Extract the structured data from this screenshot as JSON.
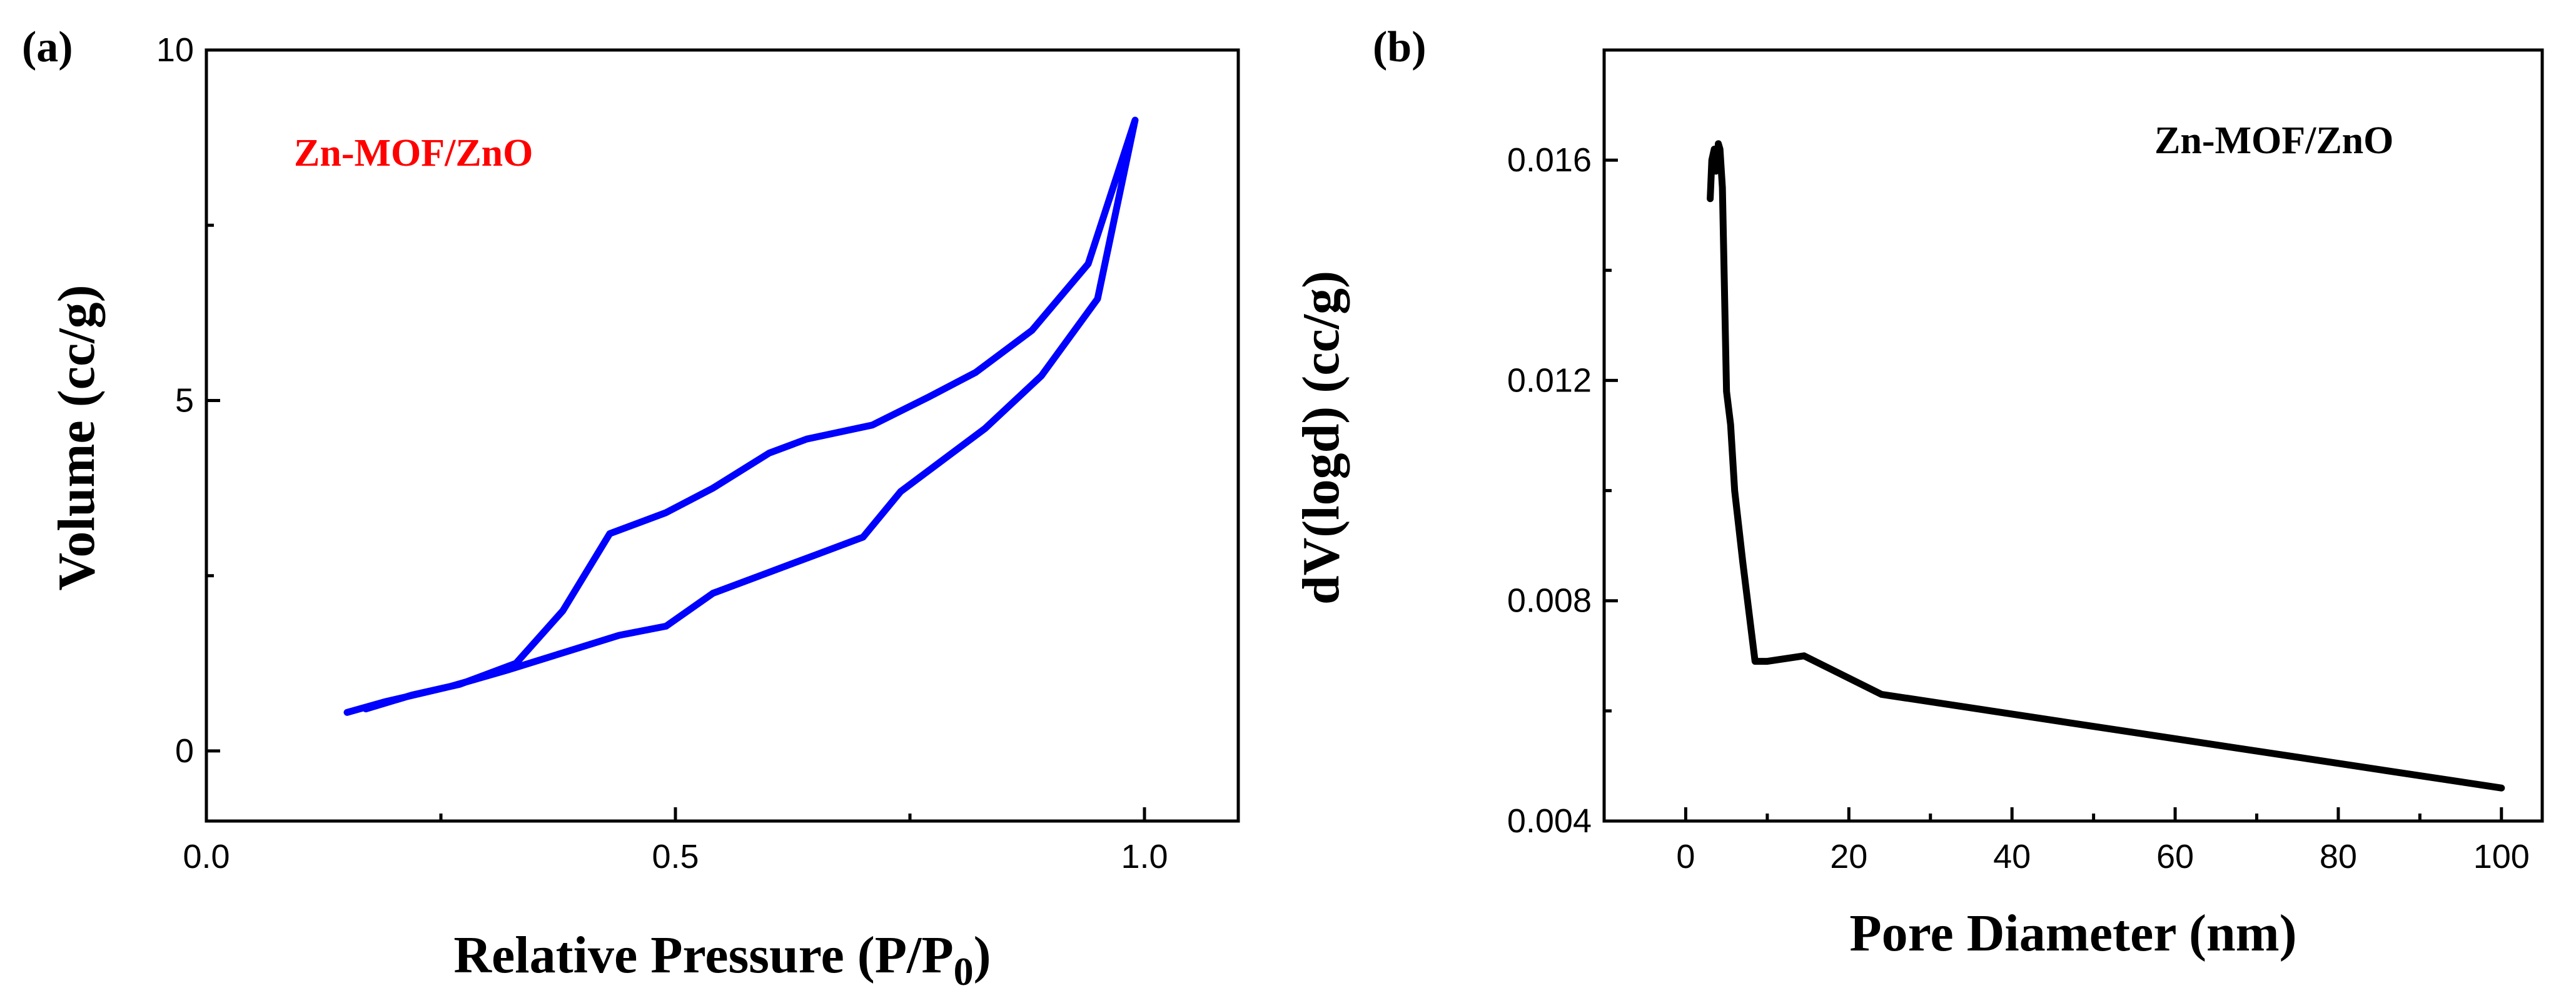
{
  "chart_data": [
    {
      "type": "line",
      "panel_label": "(a)",
      "xlabel": "Relative Pressure (P/P",
      "xlabel_subscript": "0",
      "xlabel_suffix": ")",
      "ylabel": "Volume (cc/g)",
      "xlim": [
        0.0,
        1.1
      ],
      "ylim": [
        -1,
        10
      ],
      "xticks": [
        0.0,
        0.5,
        1.0
      ],
      "xtick_labels": [
        "0.0",
        "0.5",
        "1.0"
      ],
      "yticks": [
        0,
        5,
        10
      ],
      "ytick_labels": [
        "0",
        "5",
        "10"
      ],
      "grid": false,
      "annotation": "Zn-MOF/ZnO",
      "annotation_color": "#ff0000",
      "series": [
        {
          "name": "Zn-MOF/ZnO",
          "color": "#0000ff",
          "x": [
            0.15,
            0.19,
            0.26,
            0.32,
            0.38,
            0.44,
            0.49,
            0.54,
            0.6,
            0.65,
            0.7,
            0.74,
            0.78,
            0.83,
            0.89,
            0.95,
            0.99,
            0.94,
            0.88,
            0.82,
            0.77,
            0.71,
            0.64,
            0.6,
            0.54,
            0.49,
            0.43,
            0.38,
            0.33,
            0.27,
            0.22,
            0.17
          ],
          "y": [
            0.55,
            0.7,
            0.92,
            1.15,
            1.4,
            1.65,
            1.78,
            2.25,
            2.55,
            2.8,
            3.05,
            3.7,
            4.1,
            4.6,
            5.35,
            6.45,
            9.0,
            6.95,
            6.0,
            5.4,
            5.05,
            4.65,
            4.45,
            4.25,
            3.75,
            3.4,
            3.1,
            2.0,
            1.25,
            0.95,
            0.8,
            0.6
          ]
        }
      ]
    },
    {
      "type": "line",
      "panel_label": "(b)",
      "xlabel": "Pore Diameter (nm)",
      "ylabel": "dV(logd) (cc/g)",
      "xlim": [
        -10,
        105
      ],
      "ylim": [
        0.004,
        0.018
      ],
      "xticks": [
        0,
        20,
        40,
        60,
        80,
        100
      ],
      "xtick_labels": [
        "0",
        "20",
        "40",
        "60",
        "80",
        "100"
      ],
      "yticks": [
        0.004,
        0.008,
        0.012,
        0.016
      ],
      "ytick_labels": [
        "0.004",
        "0.008",
        "0.012",
        "0.016"
      ],
      "grid": false,
      "annotation": "Zn-MOF/ZnO",
      "annotation_color": "#000000",
      "series": [
        {
          "name": "Zn-MOF/ZnO",
          "color": "#000000",
          "x": [
            3.0,
            3.2,
            3.5,
            3.7,
            4.0,
            4.2,
            4.5,
            5.0,
            5.5,
            6.0,
            7.0,
            8.5,
            10.0,
            14.5,
            24.0,
            100.0
          ],
          "y": [
            0.0153,
            0.016,
            0.0162,
            0.0158,
            0.0163,
            0.0162,
            0.0155,
            0.0118,
            0.0112,
            0.01,
            0.0087,
            0.0069,
            0.0069,
            0.007,
            0.0063,
            0.0046
          ]
        }
      ]
    }
  ]
}
